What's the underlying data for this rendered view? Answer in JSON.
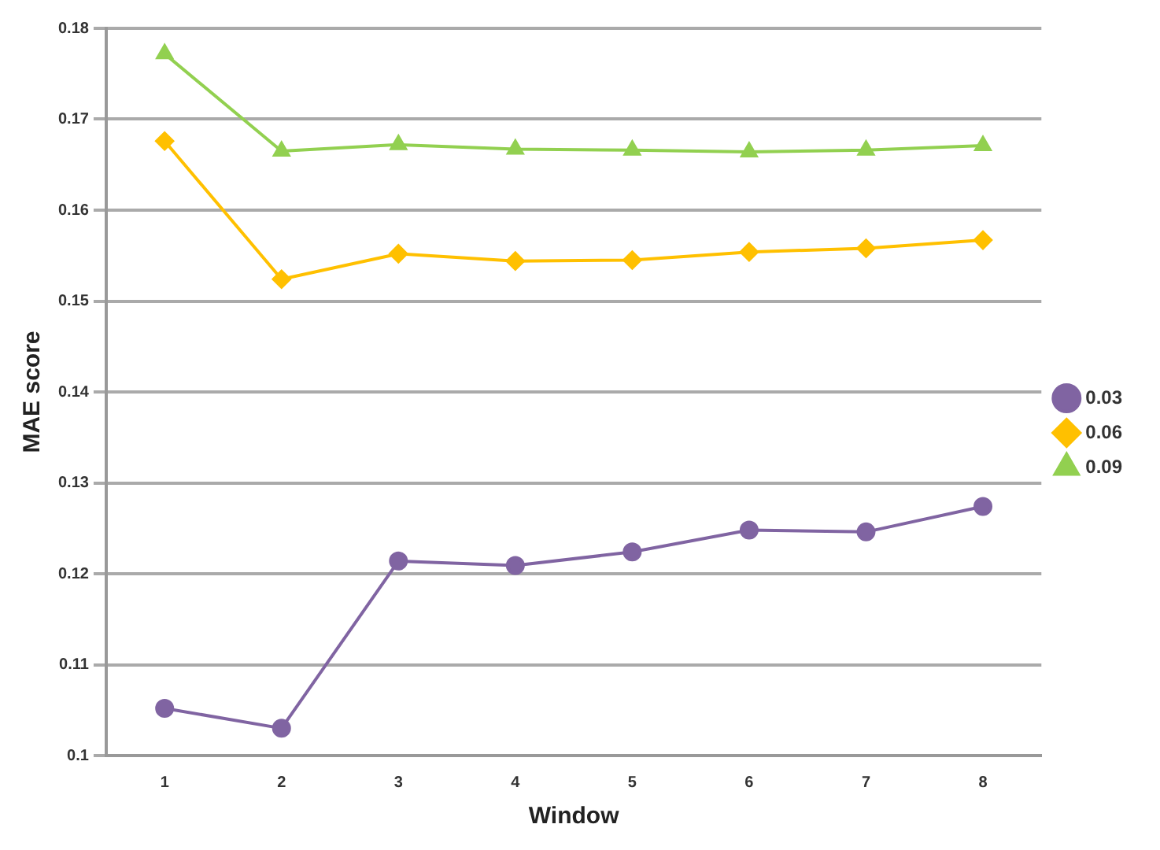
{
  "chart_data": {
    "type": "line",
    "xlabel": "Window",
    "ylabel": "MAE score",
    "categories": [
      "1",
      "2",
      "3",
      "4",
      "5",
      "6",
      "7",
      "8"
    ],
    "ylim": [
      0.1,
      0.18
    ],
    "yticks": [
      0.1,
      0.11,
      0.12,
      0.13,
      0.14,
      0.15,
      0.16,
      0.17,
      0.18
    ],
    "grid": "y",
    "legend": "right",
    "series": [
      {
        "name": "0.03",
        "color": "#8064a2",
        "marker": "circle",
        "values": [
          0.1052,
          0.103,
          0.1214,
          0.1209,
          0.1224,
          0.1248,
          0.1246,
          0.1274
        ]
      },
      {
        "name": "0.06",
        "color": "#ffc000",
        "marker": "diamond",
        "values": [
          0.1676,
          0.1524,
          0.1552,
          0.1544,
          0.1545,
          0.1554,
          0.1558,
          0.1567
        ]
      },
      {
        "name": "0.09",
        "color": "#92d050",
        "marker": "triangle",
        "values": [
          0.1772,
          0.1665,
          0.1672,
          0.1667,
          0.1666,
          0.1664,
          0.1666,
          0.1671
        ]
      }
    ]
  }
}
